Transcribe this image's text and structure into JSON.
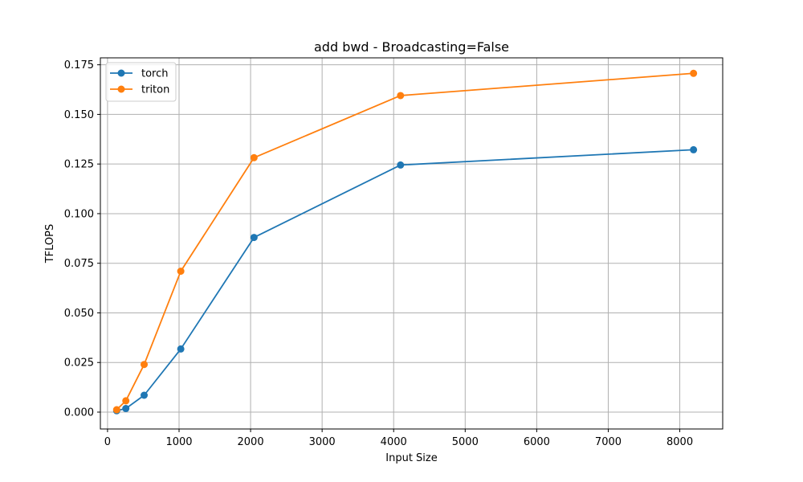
{
  "chart_data": {
    "type": "line",
    "title": "add bwd - Broadcasting=False",
    "xlabel": "Input Size",
    "ylabel": "TFLOPS",
    "xlim": [
      -100,
      8600
    ],
    "ylim": [
      -0.0085,
      0.1785
    ],
    "xticks": [
      0,
      1000,
      2000,
      3000,
      4000,
      5000,
      6000,
      7000,
      8000
    ],
    "yticks": [
      0.0,
      0.025,
      0.05,
      0.075,
      0.1,
      0.125,
      0.15,
      0.175
    ],
    "ytick_labels": [
      "0.000",
      "0.025",
      "0.050",
      "0.075",
      "0.100",
      "0.125",
      "0.150",
      "0.175"
    ],
    "grid": true,
    "legend_position": "top-left",
    "x": [
      128,
      256,
      512,
      1024,
      2048,
      4096,
      8192
    ],
    "series": [
      {
        "name": "torch",
        "color": "#1f77b4",
        "values": [
          0.0007,
          0.0018,
          0.0085,
          0.0318,
          0.088,
          0.1245,
          0.1322
        ]
      },
      {
        "name": "triton",
        "color": "#ff7f0e",
        "values": [
          0.0012,
          0.0057,
          0.024,
          0.071,
          0.1282,
          0.1595,
          0.1707
        ]
      }
    ]
  }
}
